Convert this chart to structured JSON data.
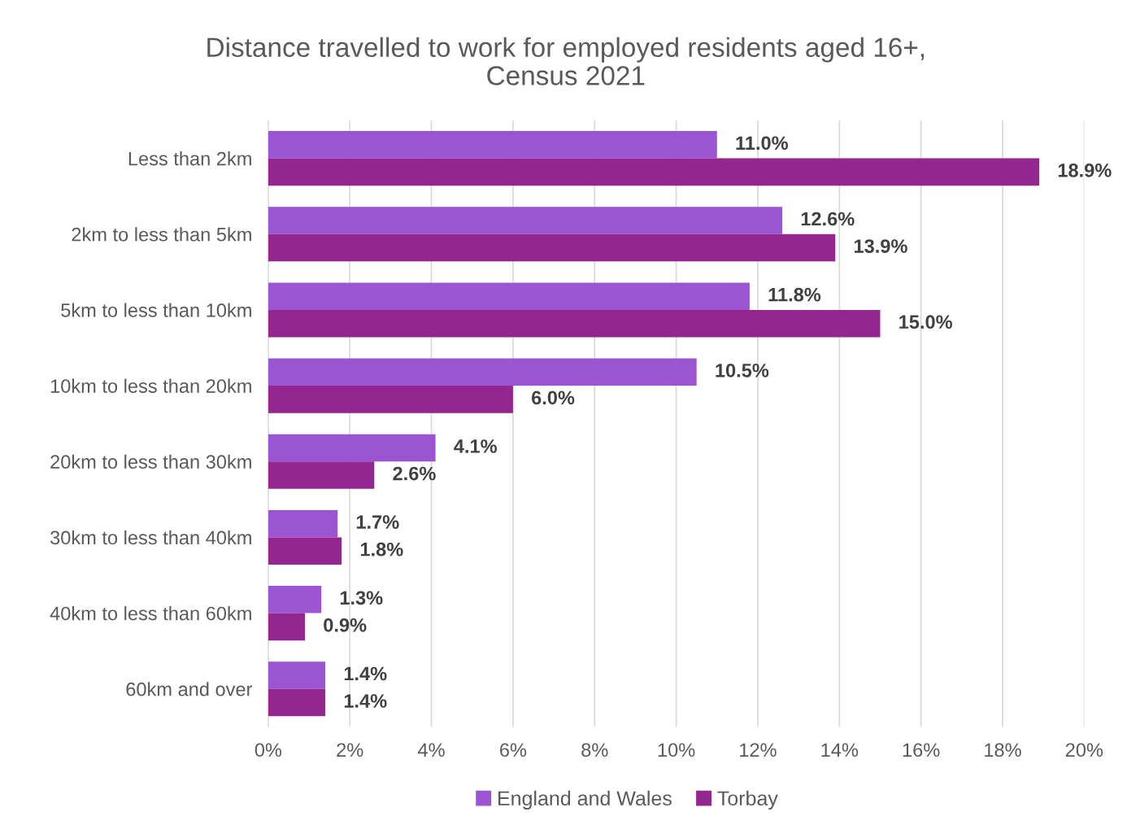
{
  "chart_data": {
    "type": "bar",
    "orientation": "horizontal",
    "title": "Distance travelled to work for employed residents aged 16+,\nCensus 2021",
    "categories": [
      "Less than 2km",
      "2km to less than 5km",
      "5km to less than 10km",
      "10km to less than 20km",
      "20km to less than 30km",
      "30km to less than 40km",
      "40km to less than 60km",
      "60km and over"
    ],
    "series": [
      {
        "name": "England and Wales",
        "color": "#9b55d3",
        "values": [
          11.0,
          12.6,
          11.8,
          10.5,
          4.1,
          1.7,
          1.3,
          1.4
        ],
        "value_labels": [
          "11.0%",
          "12.6%",
          "11.8%",
          "10.5%",
          "4.1%",
          "1.7%",
          "1.3%",
          "1.4%"
        ]
      },
      {
        "name": "Torbay",
        "color": "#93278f",
        "values": [
          18.9,
          13.9,
          15.0,
          6.0,
          2.6,
          1.8,
          0.9,
          1.4
        ],
        "value_labels": [
          "18.9%",
          "13.9%",
          "15.0%",
          "6.0%",
          "2.6%",
          "1.8%",
          "0.9%",
          "1.4%"
        ]
      }
    ],
    "xlim": [
      0,
      20
    ],
    "xticks": [
      {
        "value": 0,
        "label": "0%"
      },
      {
        "value": 2,
        "label": "2%"
      },
      {
        "value": 4,
        "label": "4%"
      },
      {
        "value": 6,
        "label": "6%"
      },
      {
        "value": 8,
        "label": "8%"
      },
      {
        "value": 10,
        "label": "10%"
      },
      {
        "value": 12,
        "label": "12%"
      },
      {
        "value": 14,
        "label": "14%"
      },
      {
        "value": 16,
        "label": "16%"
      },
      {
        "value": 18,
        "label": "18%"
      },
      {
        "value": 20,
        "label": "20%"
      }
    ],
    "grid": "x",
    "legend": "bottom"
  }
}
